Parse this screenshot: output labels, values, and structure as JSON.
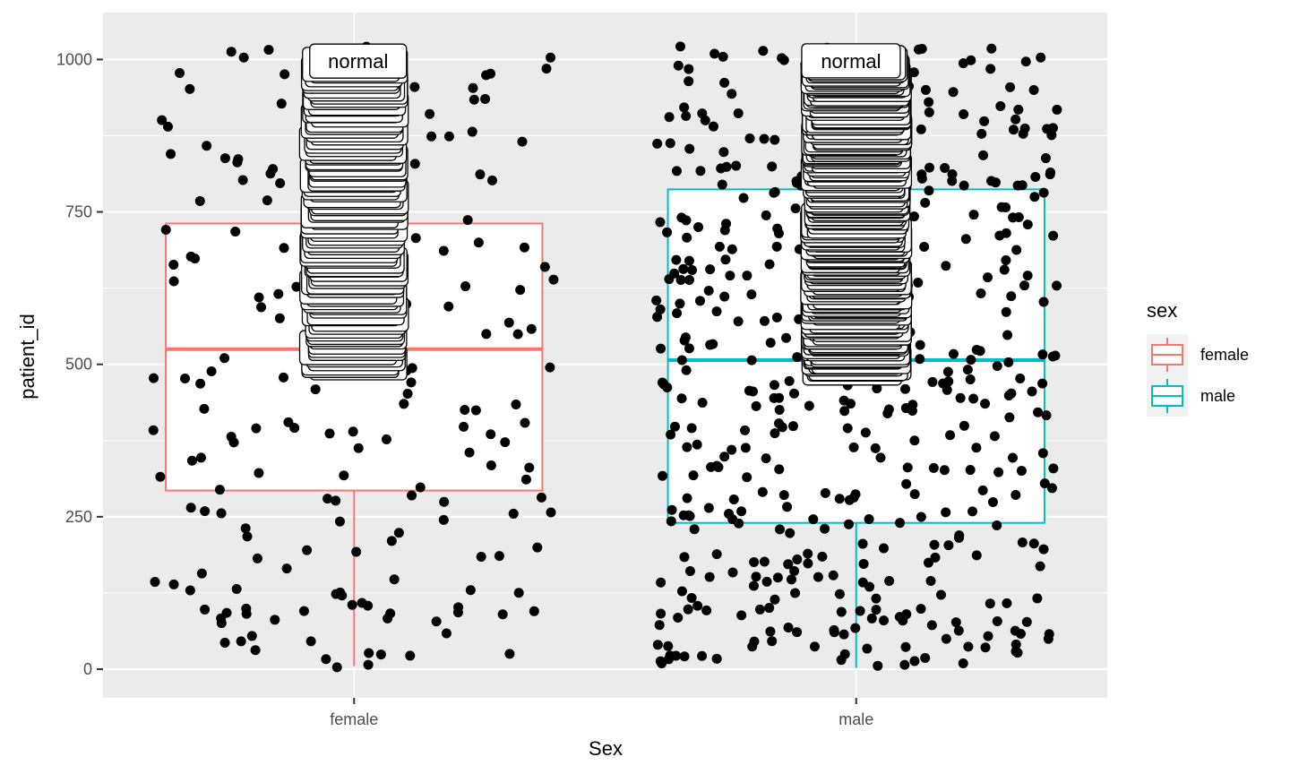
{
  "chart_data": {
    "type": "boxplot",
    "xlabel": "Sex",
    "ylabel": "patient_id",
    "categories": [
      "female",
      "male"
    ],
    "y_ticks": [
      0,
      250,
      500,
      750,
      1000
    ],
    "ylim": [
      -47,
      1077
    ],
    "grid": true,
    "legend": {
      "title": "sex",
      "position": "right",
      "entries": [
        {
          "name": "female",
          "color": "#F8766D"
        },
        {
          "name": "male",
          "color": "#00BFC4"
        }
      ]
    },
    "boxes": [
      {
        "category": "female",
        "color": "#F8766D",
        "min": 5,
        "q1": 293,
        "median": 525,
        "q3": 731,
        "max": 1010
      },
      {
        "category": "male",
        "color": "#00BFC4",
        "min": 2,
        "q1": 240,
        "median": 507,
        "q3": 787,
        "max": 1025
      }
    ],
    "label_stacks": [
      {
        "category": "female",
        "text": "normal",
        "y_min": 500,
        "y_max": 1000
      },
      {
        "category": "male",
        "text": "normal",
        "y_min": 495,
        "y_max": 1000
      }
    ],
    "points_per_group": {
      "female": 200,
      "male": 500
    },
    "colors": {
      "panel": "#EBEBEB",
      "grid": "#FFFFFF",
      "point": "#000000"
    }
  }
}
